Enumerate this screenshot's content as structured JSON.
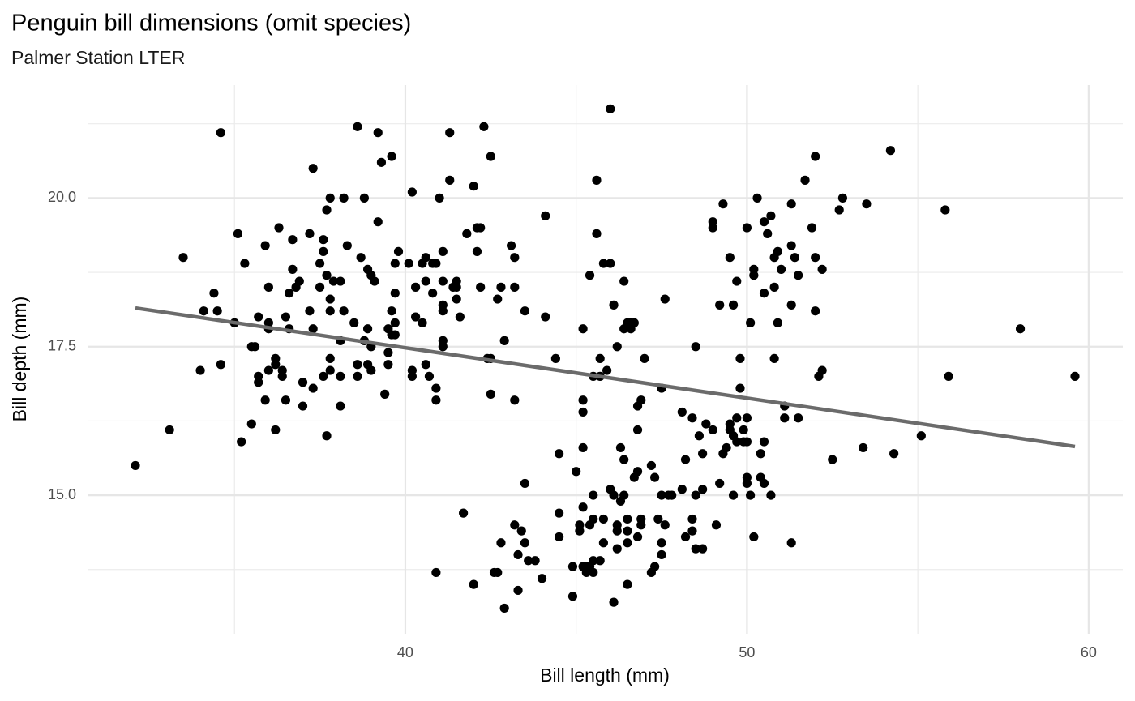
{
  "chart_data": {
    "type": "scatter",
    "title": "Penguin bill dimensions (omit species)",
    "subtitle": "Palmer Station LTER",
    "x_label": "Bill length (mm)",
    "y_label": "Bill depth (mm)",
    "color": "#000000",
    "grid": true,
    "xlim": [
      30.7,
      61.0
    ],
    "ylim": [
      12.67,
      21.9
    ],
    "xticks": [
      40,
      50,
      60
    ],
    "yticks": [
      {
        "value": 15,
        "label": "15.0"
      },
      {
        "value": 17.5,
        "label": "17.5"
      },
      {
        "value": 20,
        "label": "20.0"
      }
    ],
    "minor_xticks": [
      35,
      45,
      55
    ],
    "minor_yticks": [
      13.75,
      16.25,
      18.75,
      21.25
    ],
    "x": [
      32.1,
      33.1,
      33.5,
      34.0,
      34.1,
      34.4,
      34.5,
      34.6,
      34.6,
      35.0,
      35.1,
      35.2,
      35.3,
      35.5,
      35.5,
      35.6,
      35.7,
      35.7,
      35.7,
      35.9,
      35.9,
      36.0,
      36.0,
      36.0,
      36.0,
      36.2,
      36.2,
      36.2,
      36.3,
      36.4,
      36.4,
      36.5,
      36.5,
      36.6,
      36.6,
      36.7,
      36.7,
      36.8,
      36.9,
      37.0,
      37.0,
      37.2,
      37.2,
      37.3,
      37.3,
      37.3,
      37.5,
      37.5,
      37.6,
      37.6,
      37.6,
      37.7,
      37.7,
      37.7,
      37.8,
      37.8,
      37.8,
      37.8,
      37.8,
      37.9,
      38.1,
      38.1,
      38.1,
      38.1,
      38.2,
      38.2,
      38.3,
      38.5,
      38.6,
      38.6,
      38.6,
      38.7,
      38.8,
      38.8,
      38.9,
      38.9,
      38.9,
      39.0,
      39.0,
      39.0,
      39.1,
      39.2,
      39.2,
      39.3,
      39.4,
      39.5,
      39.5,
      39.5,
      39.6,
      39.6,
      39.6,
      39.7,
      39.7,
      39.7,
      39.7,
      39.8,
      40.1,
      40.2,
      40.2,
      40.2,
      40.3,
      40.3,
      40.5,
      40.5,
      40.6,
      40.6,
      40.6,
      40.7,
      40.8,
      40.8,
      40.9,
      40.9,
      40.9,
      40.9,
      41.0,
      41.1,
      41.1,
      41.1,
      41.1,
      41.1,
      41.1,
      41.3,
      41.3,
      41.4,
      41.5,
      41.5,
      41.5,
      41.6,
      41.7,
      41.8,
      42.0,
      42.0,
      42.1,
      42.1,
      42.2,
      42.2,
      42.3,
      42.4,
      42.5,
      42.5,
      42.5,
      42.6,
      42.7,
      42.7,
      42.8,
      42.8,
      42.9,
      42.9,
      43.1,
      43.2,
      43.2,
      43.2,
      43.2,
      43.3,
      43.3,
      43.4,
      43.5,
      43.5,
      43.5,
      43.6,
      43.8,
      44.0,
      44.1,
      44.1,
      44.4,
      44.5,
      44.5,
      44.5,
      44.9,
      44.9,
      45.0,
      45.1,
      45.1,
      45.2,
      45.2,
      45.2,
      45.2,
      45.2,
      45.2,
      45.3,
      45.3,
      45.4,
      45.4,
      45.4,
      45.5,
      45.5,
      45.5,
      45.5,
      45.5,
      45.6,
      45.6,
      45.7,
      45.7,
      45.7,
      45.8,
      45.8,
      45.9,
      45.8,
      46.0,
      46.0,
      46.0,
      46.1,
      46.1,
      46.1,
      46.2,
      46.2,
      46.2,
      46.2,
      46.3,
      46.3,
      46.4,
      46.4,
      46.4,
      46.4,
      46.5,
      46.5,
      46.5,
      46.5,
      46.5,
      46.6,
      46.6,
      46.7,
      46.8,
      46.7,
      46.8,
      46.8,
      46.8,
      46.9,
      46.9,
      46.9,
      47.0,
      47.2,
      47.2,
      47.3,
      47.3,
      47.4,
      47.5,
      47.5,
      47.5,
      47.5,
      47.6,
      47.6,
      47.7,
      47.8,
      48.1,
      48.1,
      48.2,
      48.2,
      48.4,
      48.4,
      48.4,
      48.5,
      48.5,
      48.5,
      48.6,
      48.7,
      48.7,
      48.8,
      48.7,
      49.0,
      49.1,
      49.0,
      49.0,
      49.2,
      49.2,
      49.3,
      49.3,
      49.4,
      49.5,
      49.5,
      49.5,
      49.6,
      49.6,
      49.6,
      49.7,
      49.7,
      49.7,
      49.8,
      49.8,
      49.9,
      49.9,
      50.0,
      50.0,
      50.0,
      50.0,
      50.0,
      50.1,
      50.1,
      50.2,
      50.2,
      50.2,
      50.3,
      50.4,
      50.4,
      50.5,
      50.5,
      50.5,
      50.5,
      50.6,
      50.7,
      50.7,
      50.8,
      50.8,
      50.8,
      50.9,
      50.9,
      51.0,
      51.1,
      51.1,
      51.3,
      51.3,
      51.3,
      51.3,
      51.4,
      51.5,
      51.5,
      51.7,
      51.9,
      52.0,
      52.0,
      52.0,
      52.1,
      52.2,
      52.2,
      52.5,
      52.7,
      52.8,
      53.4,
      53.5,
      54.2,
      54.3,
      55.1,
      55.8,
      55.9,
      58.0,
      59.6
    ],
    "values": [
      15.5,
      16.1,
      19.0,
      17.1,
      18.1,
      18.4,
      18.1,
      21.1,
      17.2,
      17.9,
      19.4,
      15.9,
      18.9,
      17.5,
      16.2,
      17.5,
      18.0,
      17.0,
      16.9,
      19.2,
      16.6,
      18.5,
      17.9,
      17.8,
      17.1,
      17.3,
      16.1,
      17.2,
      19.5,
      17.0,
      17.1,
      18.0,
      16.6,
      18.4,
      17.8,
      19.3,
      18.8,
      18.5,
      18.6,
      16.9,
      16.5,
      19.4,
      18.1,
      20.5,
      17.8,
      16.8,
      18.5,
      18.9,
      19.1,
      19.3,
      17.0,
      19.8,
      16.0,
      18.7,
      20.0,
      18.3,
      18.1,
      17.3,
      17.1,
      18.6,
      18.6,
      17.0,
      16.5,
      17.6,
      18.1,
      20.0,
      19.2,
      17.9,
      21.2,
      17.2,
      17.0,
      19.0,
      20.0,
      17.6,
      18.8,
      17.2,
      17.8,
      18.7,
      17.5,
      17.1,
      18.6,
      21.1,
      19.6,
      20.6,
      16.7,
      17.8,
      17.4,
      17.2,
      20.7,
      18.1,
      17.7,
      18.9,
      18.4,
      17.9,
      17.7,
      19.1,
      18.9,
      20.1,
      17.1,
      17.0,
      18.5,
      18.0,
      17.9,
      18.9,
      19.0,
      18.6,
      17.2,
      17.0,
      18.4,
      18.9,
      18.9,
      16.8,
      16.6,
      13.7,
      20.0,
      19.1,
      17.5,
      17.6,
      18.1,
      18.6,
      18.2,
      21.1,
      20.3,
      18.5,
      18.6,
      18.5,
      18.3,
      18.0,
      14.7,
      19.4,
      20.2,
      13.5,
      19.1,
      19.5,
      19.5,
      18.5,
      21.2,
      17.3,
      17.3,
      20.7,
      16.7,
      13.7,
      13.7,
      18.3,
      18.5,
      14.2,
      17.6,
      13.1,
      19.2,
      19.0,
      18.5,
      16.6,
      14.5,
      14.0,
      13.4,
      14.4,
      15.2,
      18.1,
      14.2,
      13.9,
      13.9,
      13.6,
      19.7,
      18.0,
      17.3,
      15.7,
      14.7,
      14.3,
      13.3,
      13.8,
      15.4,
      14.5,
      14.4,
      16.6,
      16.4,
      17.8,
      15.8,
      14.8,
      13.8,
      13.7,
      13.8,
      13.8,
      14.5,
      18.7,
      15.0,
      14.6,
      17.0,
      13.9,
      13.7,
      19.4,
      20.3,
      17.0,
      17.3,
      13.9,
      18.9,
      14.6,
      17.1,
      14.2,
      18.9,
      21.5,
      15.1,
      13.2,
      18.2,
      15.0,
      17.5,
      14.1,
      14.4,
      14.5,
      15.8,
      14.9,
      18.6,
      15.6,
      17.8,
      15.0,
      14.6,
      14.4,
      14.2,
      13.5,
      17.9,
      17.9,
      17.8,
      17.9,
      16.1,
      15.3,
      16.5,
      15.4,
      14.3,
      14.6,
      16.6,
      14.5,
      17.3,
      15.5,
      13.7,
      15.3,
      13.8,
      14.6,
      14.2,
      15.0,
      14.0,
      16.8,
      18.3,
      14.5,
      15.0,
      15.0,
      16.4,
      15.1,
      15.6,
      14.3,
      16.3,
      14.6,
      14.4,
      17.5,
      15.0,
      14.1,
      16.0,
      15.1,
      14.1,
      16.2,
      15.7,
      16.1,
      14.5,
      19.6,
      19.5,
      18.2,
      15.2,
      19.9,
      15.7,
      15.8,
      19.0,
      16.2,
      16.1,
      18.2,
      16.0,
      15.0,
      18.6,
      16.3,
      15.9,
      17.3,
      16.8,
      16.1,
      15.9,
      16.3,
      15.9,
      15.3,
      15.2,
      19.5,
      17.9,
      15.0,
      18.8,
      18.7,
      14.3,
      20.0,
      15.3,
      15.7,
      19.6,
      18.4,
      15.9,
      15.2,
      19.4,
      19.7,
      15.0,
      19.0,
      18.5,
      17.3,
      19.1,
      17.9,
      18.8,
      16.5,
      16.3,
      19.9,
      19.2,
      18.2,
      14.2,
      19.0,
      16.3,
      18.7,
      20.3,
      19.5,
      20.7,
      19.0,
      18.1,
      17.0,
      18.8,
      17.1,
      15.6,
      19.8,
      20.0,
      15.8,
      19.9,
      20.8,
      15.7,
      16.0,
      19.8,
      17.0,
      17.8,
      17.0
    ],
    "trend": {
      "type": "line",
      "color": "#6b6b6b",
      "x": [
        32.1,
        59.6
      ],
      "values": [
        18.15,
        15.82
      ]
    }
  }
}
